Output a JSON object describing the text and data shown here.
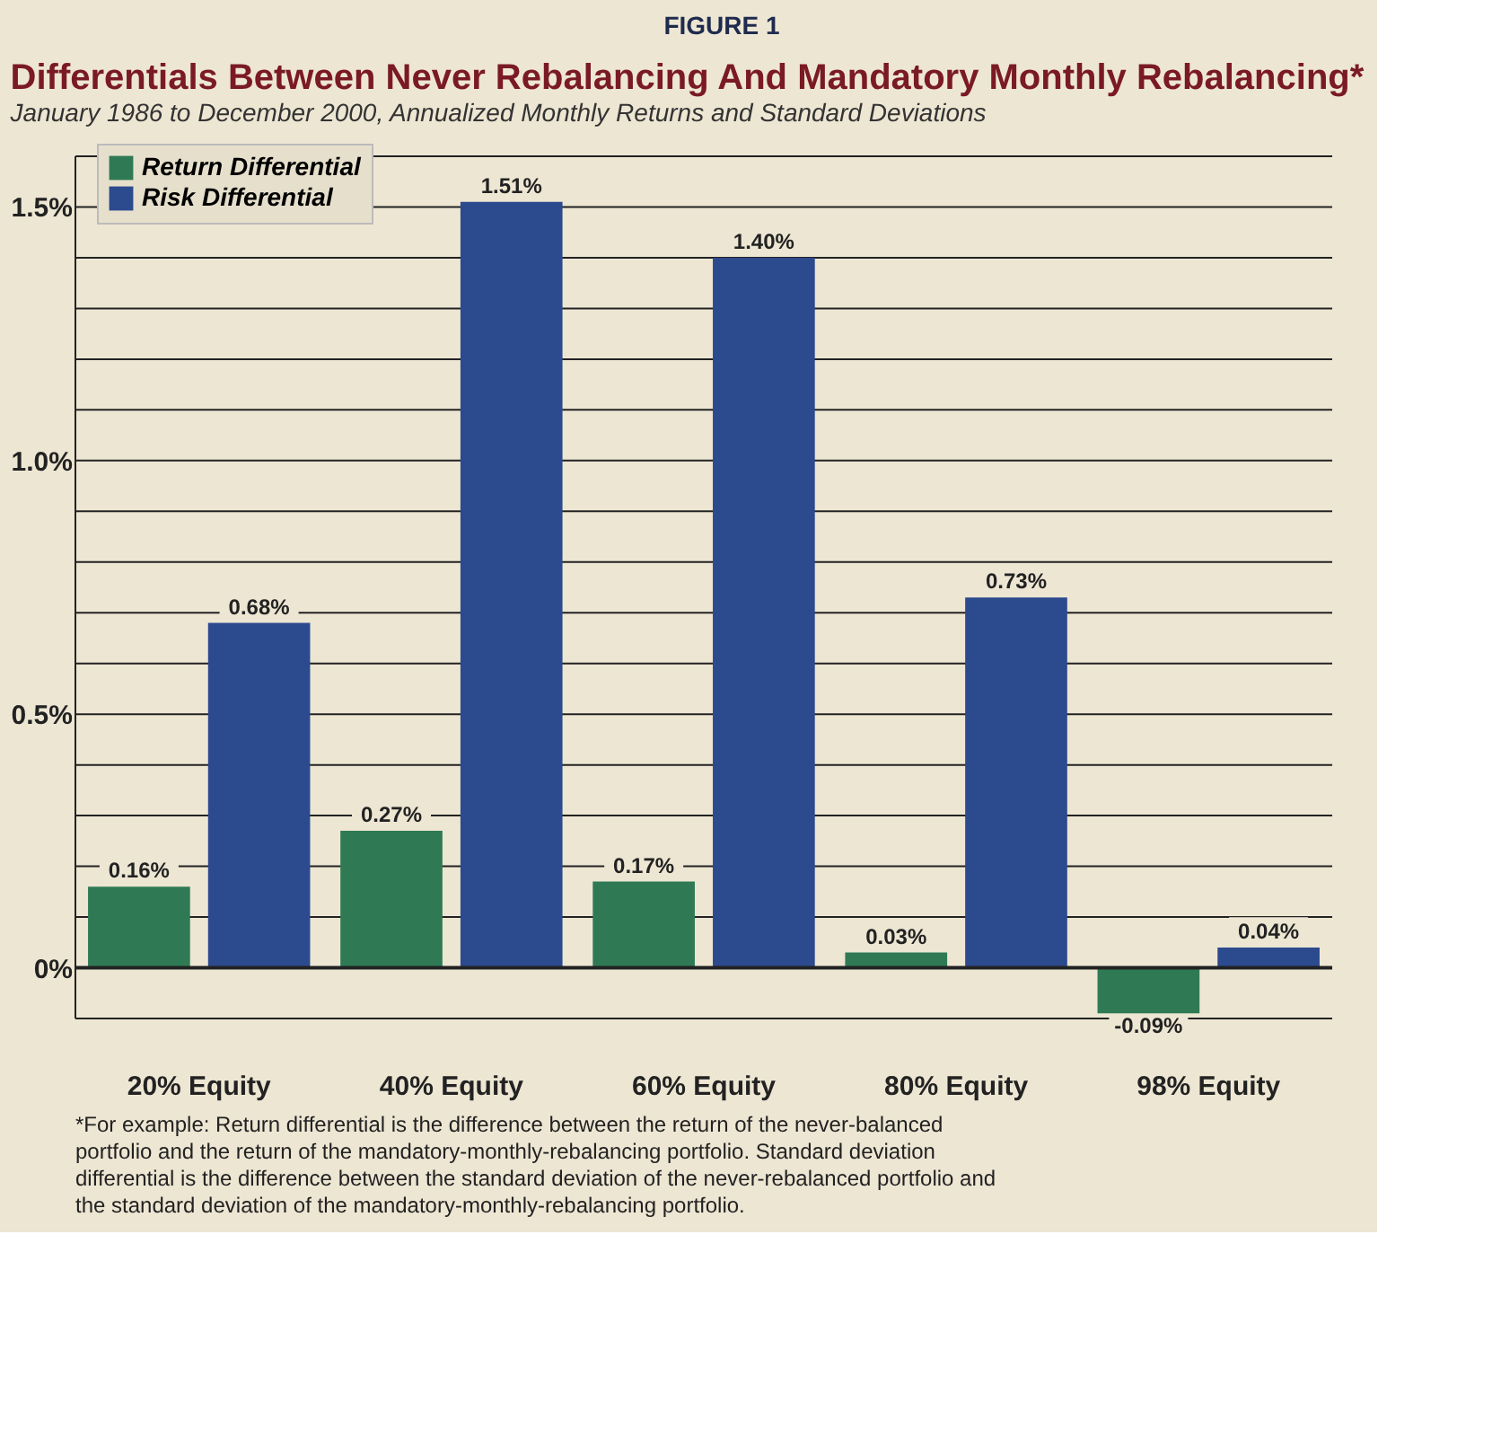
{
  "chart_data": {
    "type": "bar",
    "title": "Differentials Between Never Rebalancing And Mandatory Monthly Rebalancing*",
    "subtitle": "January 1986 to December 2000, Annualized Monthly Returns and Standard Deviations",
    "categories": [
      "20% Equity",
      "40% Equity",
      "60% Equity",
      "80% Equity",
      "98% Equity"
    ],
    "series": [
      {
        "name": "Return Differential",
        "color": "#2f7a55",
        "values": [
          0.16,
          0.27,
          0.17,
          0.03,
          -0.09
        ],
        "value_labels": [
          "0.16%",
          "0.27%",
          "0.17%",
          "0.03%",
          "-0.09%"
        ]
      },
      {
        "name": "Risk Differential",
        "color": "#2c4a8e",
        "values": [
          0.68,
          1.51,
          1.4,
          0.73,
          0.04
        ],
        "value_labels": [
          "0.68%",
          "1.51%",
          "1.40%",
          "0.73%",
          "0.04%"
        ]
      }
    ],
    "ylim": [
      -0.1,
      1.6
    ],
    "yticks": [
      {
        "value": -0.1,
        "label": null
      },
      {
        "value": 0,
        "label": "0%"
      },
      {
        "value": 0.1,
        "label": null
      },
      {
        "value": 0.2,
        "label": null
      },
      {
        "value": 0.3,
        "label": null
      },
      {
        "value": 0.4,
        "label": null
      },
      {
        "value": 0.5,
        "label": "0.5%"
      },
      {
        "value": 0.6,
        "label": null
      },
      {
        "value": 0.7,
        "label": null
      },
      {
        "value": 0.8,
        "label": null
      },
      {
        "value": 0.9,
        "label": null
      },
      {
        "value": 1.0,
        "label": "1.0%"
      },
      {
        "value": 1.1,
        "label": null
      },
      {
        "value": 1.2,
        "label": null
      },
      {
        "value": 1.3,
        "label": null
      },
      {
        "value": 1.4,
        "label": null
      },
      {
        "value": 1.5,
        "label": "1.5%"
      },
      {
        "value": 1.6,
        "label": null
      }
    ],
    "grid": "y",
    "legend": "top left",
    "annotations": [
      "FIGURE 1",
      "*For example: Return differential is the difference between the return of the never-balanced portfolio and the return of the mandatory-monthly-rebalancing portfolio. Standard deviation differential is the difference between the standard deviation of the never-rebalanced portfolio and the standard deviation of the mandatory-monthly-rebalancing portfolio."
    ]
  }
}
